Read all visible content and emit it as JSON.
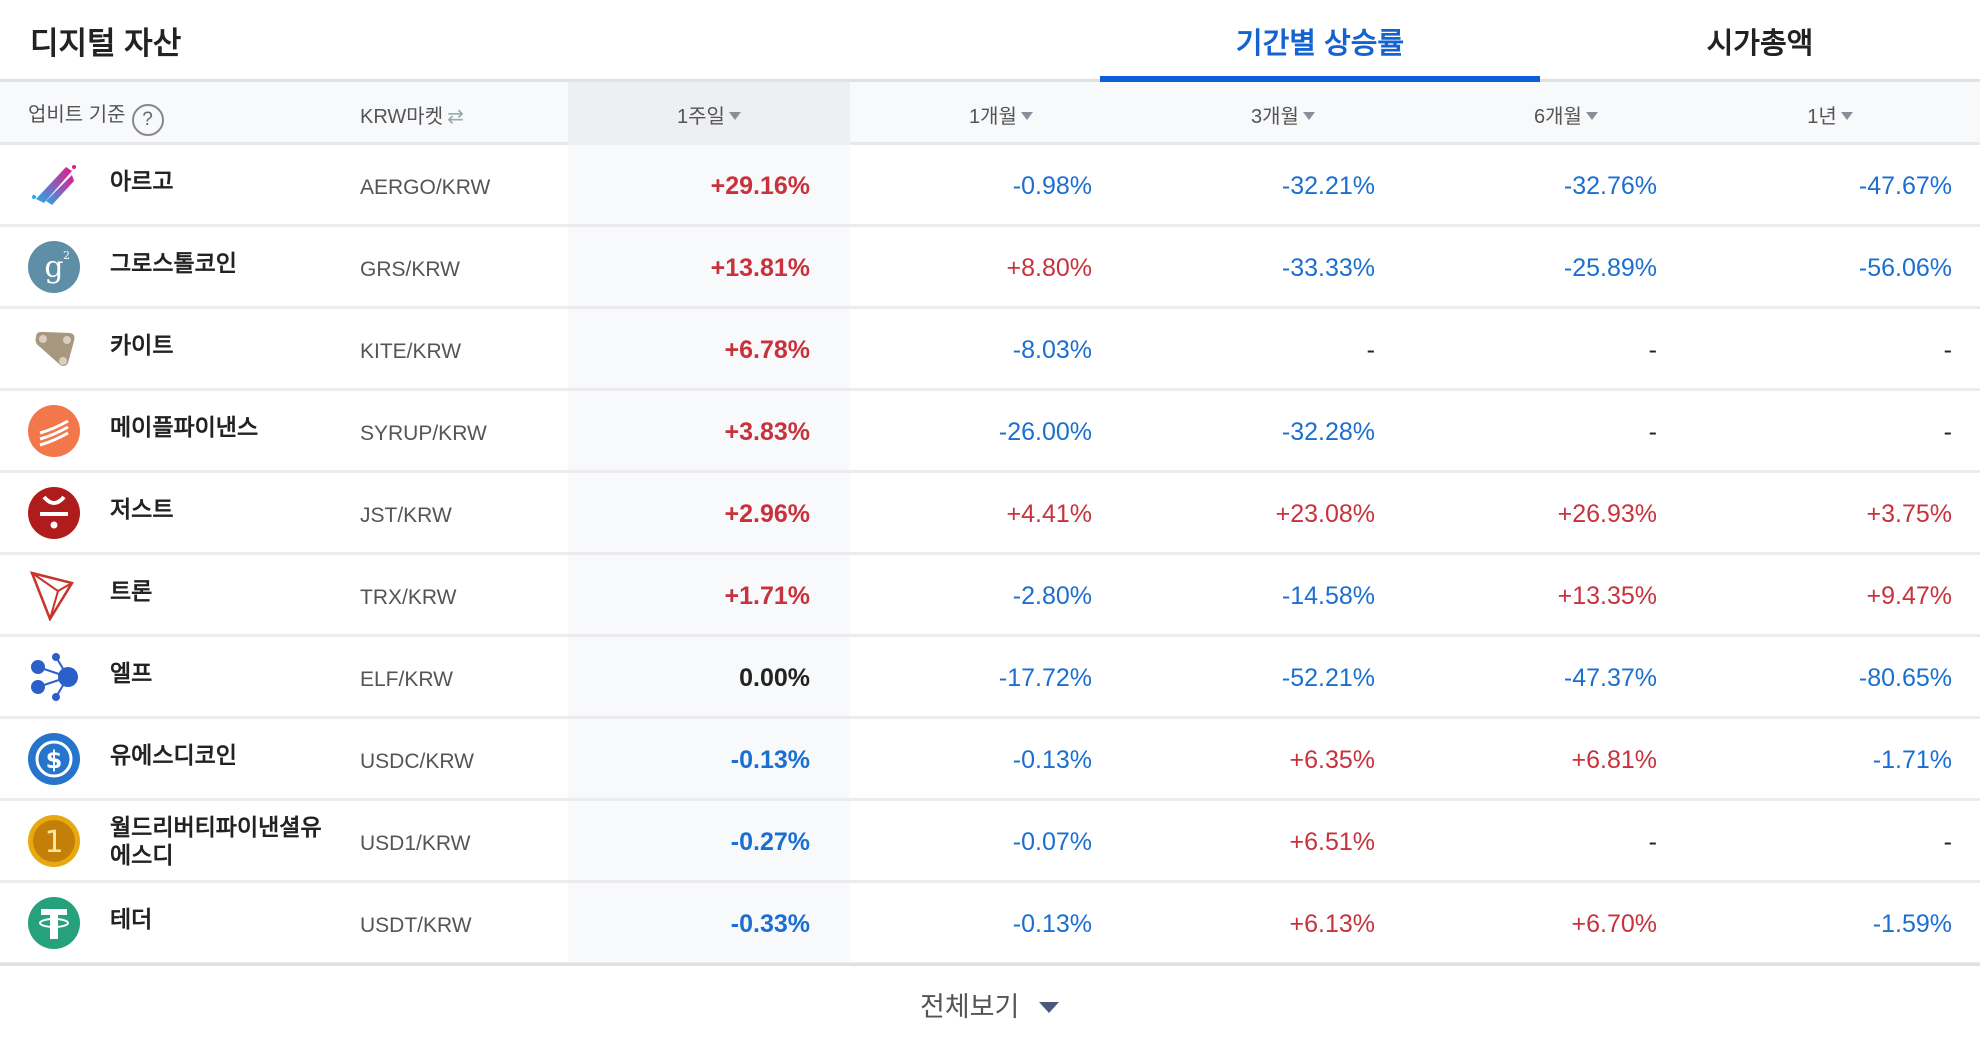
{
  "header": {
    "title": "디지털 자산",
    "tabs": [
      {
        "label": "기간별 상승률",
        "active": true
      },
      {
        "label": "시가총액",
        "active": false
      }
    ]
  },
  "columns": {
    "basis_label": "업비트 기준",
    "basis_help_icon": "?",
    "market_label": "KRW마켓",
    "periods": [
      "1주일",
      "1개월",
      "3개월",
      "6개월",
      "1년"
    ]
  },
  "colors": {
    "accent": "#0d5fd8",
    "up": "#c8323c",
    "down": "#1a6fd1",
    "flat": "#222222"
  },
  "rows": [
    {
      "icon": "aergo-icon",
      "name": "아르고",
      "market": "AERGO/KRW",
      "values": [
        "+29.16%",
        "-0.98%",
        "-32.21%",
        "-32.76%",
        "-47.67%"
      ]
    },
    {
      "icon": "groestlcoin-icon",
      "name": "그로스톨코인",
      "market": "GRS/KRW",
      "values": [
        "+13.81%",
        "+8.80%",
        "-33.33%",
        "-25.89%",
        "-56.06%"
      ]
    },
    {
      "icon": "kite-icon",
      "name": "카이트",
      "market": "KITE/KRW",
      "values": [
        "+6.78%",
        "-8.03%",
        "-",
        "-",
        "-"
      ]
    },
    {
      "icon": "maple-finance-icon",
      "name": "메이플파이낸스",
      "market": "SYRUP/KRW",
      "values": [
        "+3.83%",
        "-26.00%",
        "-32.28%",
        "-",
        "-"
      ]
    },
    {
      "icon": "just-icon",
      "name": "저스트",
      "market": "JST/KRW",
      "values": [
        "+2.96%",
        "+4.41%",
        "+23.08%",
        "+26.93%",
        "+3.75%"
      ]
    },
    {
      "icon": "tron-icon",
      "name": "트론",
      "market": "TRX/KRW",
      "values": [
        "+1.71%",
        "-2.80%",
        "-14.58%",
        "+13.35%",
        "+9.47%"
      ]
    },
    {
      "icon": "aelf-icon",
      "name": "엘프",
      "market": "ELF/KRW",
      "values": [
        "0.00%",
        "-17.72%",
        "-52.21%",
        "-47.37%",
        "-80.65%"
      ]
    },
    {
      "icon": "usdc-icon",
      "name": "유에스디코인",
      "market": "USDC/KRW",
      "values": [
        "-0.13%",
        "-0.13%",
        "+6.35%",
        "+6.81%",
        "-1.71%"
      ]
    },
    {
      "icon": "usd1-icon",
      "name": "월드리버티파이낸셜유에스디",
      "name_lines": [
        "월드리버티파이낸셜유",
        "에스디"
      ],
      "market": "USD1/KRW",
      "values": [
        "-0.27%",
        "-0.07%",
        "+6.51%",
        "-",
        "-"
      ]
    },
    {
      "icon": "tether-icon",
      "name": "테더",
      "market": "USDT/KRW",
      "values": [
        "-0.33%",
        "-0.13%",
        "+6.13%",
        "+6.70%",
        "-1.59%"
      ]
    }
  ],
  "footer": {
    "more_label": "전체보기"
  }
}
